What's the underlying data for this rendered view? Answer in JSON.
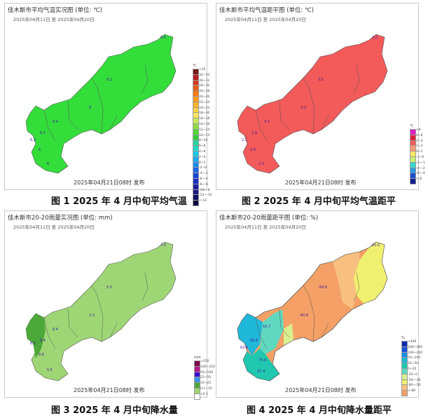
{
  "panels": [
    {
      "title": "佳木斯市平均气温实况图 (单位: ℃)",
      "date_range": "2025年04月11日  至  2025年04月20日",
      "issued": "2025年04月21日08时 发布",
      "caption": "图 1  2025 年 4 月中旬平均气温",
      "fill": "#33dd3a",
      "legend": {
        "unit": "℃",
        "items": [
          {
            "label": ">35",
            "color": "#7a1a1a"
          },
          {
            "label": "32~35",
            "color": "#b22020"
          },
          {
            "label": "30~32",
            "color": "#d63a1e"
          },
          {
            "label": "28~30",
            "color": "#e85c16"
          },
          {
            "label": "26~28",
            "color": "#f57a10"
          },
          {
            "label": "24~26",
            "color": "#ff9a1a"
          },
          {
            "label": "22~24",
            "color": "#ffb42a"
          },
          {
            "label": "20~22",
            "color": "#ffd040"
          },
          {
            "label": "18~20",
            "color": "#ffe860"
          },
          {
            "label": "16~18",
            "color": "#c8e85a"
          },
          {
            "label": "14~16",
            "color": "#8ee040"
          },
          {
            "label": "12~14",
            "color": "#50d838"
          },
          {
            "label": "10~12",
            "color": "#33cc33"
          },
          {
            "label": "8~10",
            "color": "#2ad69a"
          },
          {
            "label": "6~8",
            "color": "#20d8c8"
          },
          {
            "label": "4~6",
            "color": "#1cc8e8"
          },
          {
            "label": "2~4",
            "color": "#1aa8f0"
          },
          {
            "label": "0~2",
            "color": "#1a88f0"
          },
          {
            "label": "-2~0",
            "color": "#1a68e8"
          },
          {
            "label": "-4~-2",
            "color": "#1a48d8"
          },
          {
            "label": "-6~-4",
            "color": "#1a30c0"
          },
          {
            "label": "-8~-6",
            "color": "#1a20a0"
          },
          {
            "label": "-10~-8",
            "color": "#1a1880"
          },
          {
            "label": "-12~-10",
            "color": "#141060"
          },
          {
            "label": "<-12",
            "color": "#0c0840"
          }
        ]
      },
      "station_values": [
        "6.6",
        "9.1",
        "8",
        "6.4",
        "6.1",
        "6.2",
        "6",
        "6"
      ]
    },
    {
      "title": "佳木斯市平均气温距平图 (单位: ℃)",
      "date_range": "2025年04月11日  至  2025年04月20日",
      "issued": "2025年04月21日08时 发布",
      "caption": "图 2  2025 年 4 月中旬平均气温距平",
      "fill": "#f35a5a",
      "legend": {
        "unit": "℃",
        "items": [
          {
            "label": ">6",
            "color": "#e01ec8"
          },
          {
            "label": "4~6",
            "color": "#e0223a"
          },
          {
            "label": "2~4",
            "color": "#f35a5a"
          },
          {
            "label": "1~2",
            "color": "#ff9a7a"
          },
          {
            "label": "0~1",
            "color": "#ffe866"
          },
          {
            "label": "-1~0",
            "color": "#c8f070"
          },
          {
            "label": "-2~-1",
            "color": "#3ad8d0"
          },
          {
            "label": "-4~-2",
            "color": "#2a9ae8"
          },
          {
            "label": "-6~-4",
            "color": "#1a50d0"
          },
          {
            "label": "<-6",
            "color": "#10208a"
          }
        ]
      },
      "station_values": [
        "3.2",
        "3.5",
        "3.3",
        "3.3",
        "2.9",
        "2.1",
        "2.3",
        "2.8"
      ]
    },
    {
      "title": "佳木斯市20-20雨量实况图 (单位: mm)",
      "date_range": "2025年04月11日  至  2025年04月20日",
      "issued": "2025年04月21日08时 发布",
      "caption": "图 3  2025 年 4 月中旬降水量",
      "fill": "#9ed676",
      "legend": {
        "unit": "mm",
        "items": [
          {
            "label": ">250",
            "color": "#7a0a4a"
          },
          {
            "label": "100~250",
            "color": "#b01a8a"
          },
          {
            "label": "50~100",
            "color": "#3a0ad0"
          },
          {
            "label": "25~50",
            "color": "#3a90e8"
          },
          {
            "label": "10~25",
            "color": "#4ca838"
          },
          {
            "label": "0.1~10",
            "color": "#9ed676"
          },
          {
            "label": "<0.1",
            "color": "#ffffff"
          }
        ]
      },
      "station_values": [
        "7.0",
        "5.5",
        "2.3",
        "8.4",
        "8.4",
        "8.2",
        "5.5",
        "8.8"
      ]
    },
    {
      "title": "佳木斯市20-20雨量距平图 (单位: %)",
      "date_range": "2025年04月11日  至  2025年04月20日",
      "issued": "2025年04月21日08时 发布",
      "caption": "图 4  2025 年 4 月中旬降水量距平",
      "fill": "#f5a066",
      "legend": {
        "unit": "%",
        "items": [
          {
            "label": ">400",
            "color": "#0a2ab0"
          },
          {
            "label": "200~400",
            "color": "#1a50d8"
          },
          {
            "label": "100~200",
            "color": "#1a88e8"
          },
          {
            "label": "50~100",
            "color": "#20b8d8"
          },
          {
            "label": "20~50",
            "color": "#20c8b0"
          },
          {
            "label": "0~20",
            "color": "#60d8c0"
          },
          {
            "label": "-20~0",
            "color": "#d8f090"
          },
          {
            "label": "-50~-20",
            "color": "#f0f070"
          },
          {
            "label": "-80~-50",
            "color": "#f8c080"
          },
          {
            "label": "<-80",
            "color": "#f5a066"
          }
        ]
      },
      "station_values": [
        "-20.0",
        "-58.8",
        "-40.6",
        "16.7",
        "56.8",
        "62.6",
        "75.0",
        "37.4"
      ]
    }
  ]
}
